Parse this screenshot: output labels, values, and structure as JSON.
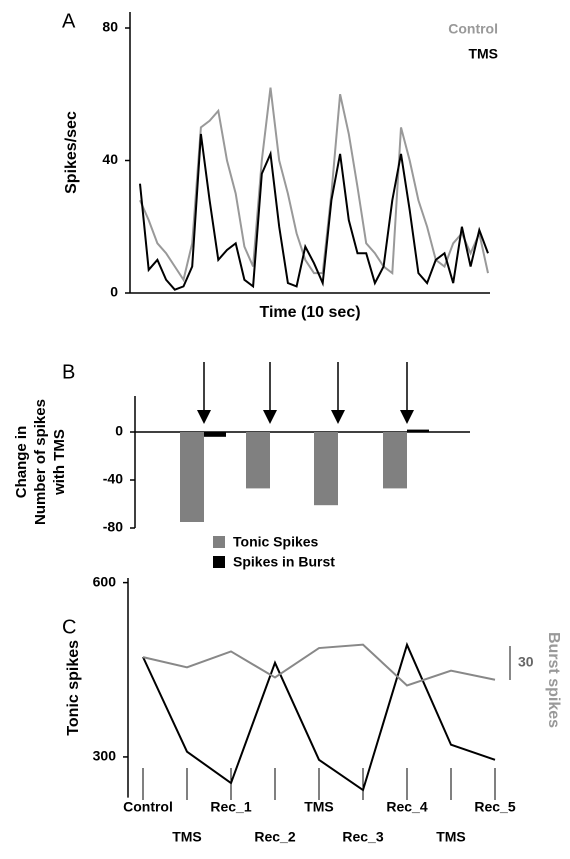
{
  "chart_data": [
    {
      "type": "line",
      "label": "A",
      "xlabel": "Time (10 sec)",
      "ylabel": "Spikes/sec",
      "ylim": [
        0,
        80
      ],
      "yticks": [
        0,
        40,
        80
      ],
      "series": [
        {
          "name": "Control",
          "color": "#999999",
          "values": [
            28,
            22,
            15,
            12,
            8,
            4,
            15,
            50,
            52,
            55,
            40,
            30,
            14,
            8,
            40,
            62,
            40,
            30,
            18,
            10,
            6,
            6,
            30,
            60,
            48,
            32,
            15,
            12,
            8,
            6,
            50,
            40,
            28,
            20,
            10,
            8,
            15,
            18,
            12,
            18,
            6
          ]
        },
        {
          "name": "TMS",
          "color": "#000000",
          "values": [
            33,
            7,
            10,
            4,
            1,
            2,
            8,
            48,
            28,
            10,
            13,
            15,
            4,
            2,
            36,
            42,
            20,
            3,
            2,
            14,
            9,
            3,
            28,
            42,
            22,
            12,
            12,
            3,
            8,
            28,
            42,
            25,
            6,
            3,
            10,
            12,
            3,
            20,
            8,
            19,
            12
          ]
        }
      ]
    },
    {
      "type": "bar",
      "label": "B",
      "ylabel": [
        "Change in",
        "Number of spikes",
        "with TMS"
      ],
      "categories": [
        null,
        null,
        null,
        null
      ],
      "ylim": [
        -80,
        30
      ],
      "yticks": [
        0,
        -40,
        -80
      ],
      "series": [
        {
          "name": "Tonic Spikes",
          "color": "#808080",
          "values": [
            -75,
            -47,
            -61,
            -47
          ]
        },
        {
          "name": "Spikes in Burst",
          "color": "#000000",
          "values": [
            -4,
            0,
            0,
            2
          ]
        }
      ]
    },
    {
      "type": "line",
      "label": "C",
      "ylabel": "Tonic spikes",
      "y2label": "Burst spikes",
      "categories": [
        "Control",
        "TMS",
        "Rec_1",
        "Rec_2",
        "TMS",
        "Rec_3",
        "Rec_4",
        "TMS",
        "Rec_5"
      ],
      "ylim": [
        230,
        620
      ],
      "yticks": [
        300,
        600
      ],
      "y2lim": [
        0,
        200
      ],
      "y2scale": 30,
      "series": [
        {
          "color": "#000000",
          "values": [
            472,
            309,
            255,
            462,
            295,
            243,
            493,
            321,
            295
          ]
        },
        {
          "color": "#888888",
          "axis": "y2",
          "values": [
            124,
            115,
            129,
            106,
            132,
            135,
            99,
            112,
            104
          ]
        }
      ]
    }
  ]
}
